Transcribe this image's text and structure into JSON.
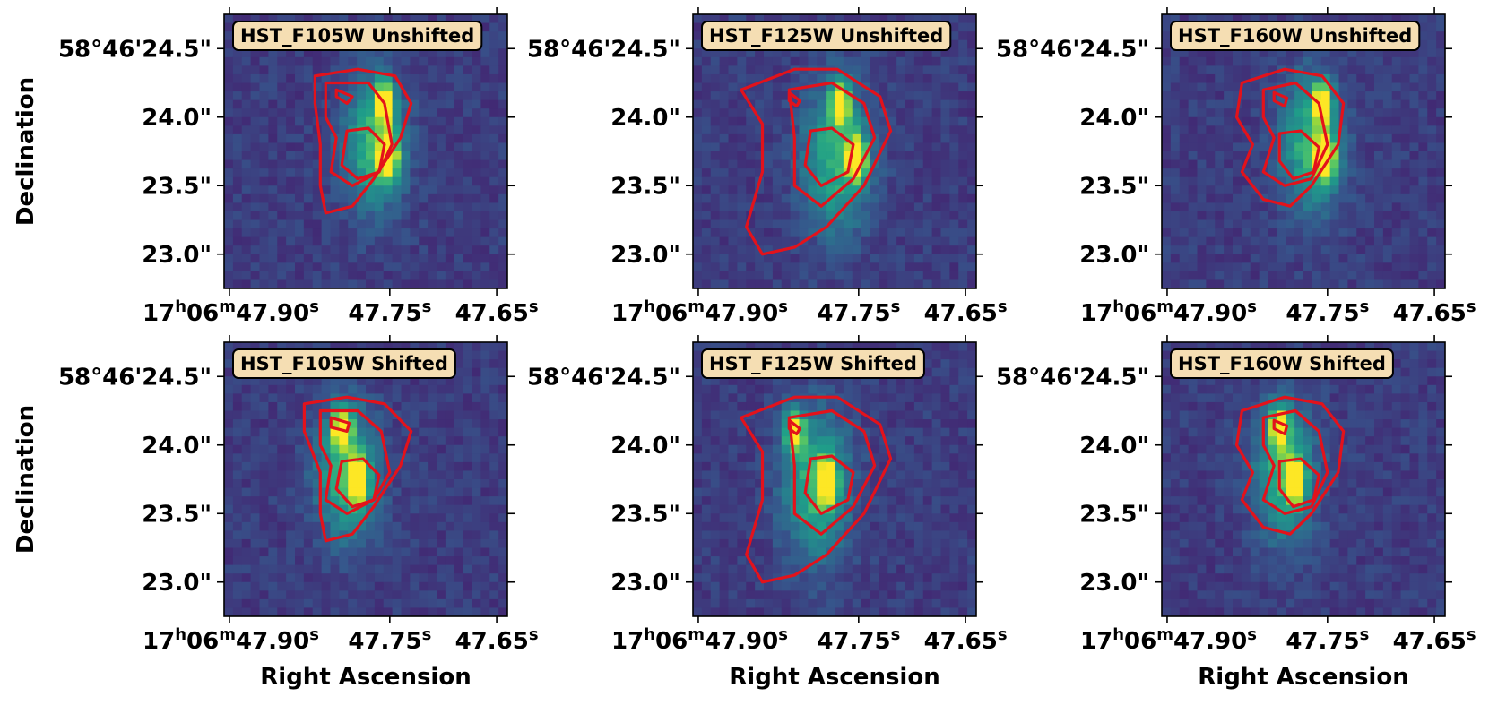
{
  "figure": {
    "xlabel": "Right Ascension",
    "ylabel": "Declination",
    "colors": {
      "contour": "#e3121b",
      "badge_fill": "#f5deb3",
      "badge_stroke": "#000000",
      "background_low": "#3b2f6b",
      "background_mid": "#2f5f8e",
      "peak": "#d9e33b"
    }
  },
  "chart_data": [
    {
      "type": "heatmap",
      "title": "HST_F105W Unshifted",
      "ra_ticks": [
        {
          "value": 47.9,
          "label_h": "17",
          "label_m": "06",
          "label_s": "47.90"
        },
        {
          "value": 47.75,
          "label_s": "47.75"
        },
        {
          "value": 47.65,
          "label_s": "47.65"
        }
      ],
      "dec_ticks": [
        {
          "value": 24.5,
          "label": "58°46'24.5\""
        },
        {
          "value": 24.0,
          "label": "24.0\""
        },
        {
          "value": 23.5,
          "label": "23.5\""
        },
        {
          "value": 23.0,
          "label": "23.0\""
        }
      ],
      "xlim": [
        47.905,
        47.64
      ],
      "ylim": [
        22.75,
        24.75
      ],
      "sources": [
        {
          "ra": 47.755,
          "dec": 24.1,
          "amp": 0.95,
          "sig": 0.006
        },
        {
          "ra": 47.752,
          "dec": 23.7,
          "amp": 1.0,
          "sig": 0.006
        },
        {
          "ra": 47.765,
          "dec": 23.8,
          "amp": 0.5,
          "sig": 0.02
        }
      ],
      "contours": [
        [
          [
            47.82,
            24.3
          ],
          [
            47.78,
            24.35
          ],
          [
            47.745,
            24.3
          ],
          [
            47.73,
            24.1
          ],
          [
            47.74,
            23.85
          ],
          [
            47.765,
            23.55
          ],
          [
            47.785,
            23.35
          ],
          [
            47.81,
            23.3
          ],
          [
            47.815,
            23.5
          ],
          [
            47.815,
            23.8
          ],
          [
            47.82,
            24.1
          ]
        ],
        [
          [
            47.81,
            24.25
          ],
          [
            47.77,
            24.25
          ],
          [
            47.755,
            24.1
          ],
          [
            47.748,
            23.8
          ],
          [
            47.76,
            23.6
          ],
          [
            47.785,
            23.5
          ],
          [
            47.805,
            23.6
          ],
          [
            47.8,
            23.85
          ],
          [
            47.81,
            24.0
          ]
        ],
        [
          [
            47.79,
            23.9
          ],
          [
            47.77,
            23.92
          ],
          [
            47.755,
            23.8
          ],
          [
            47.76,
            23.6
          ],
          [
            47.78,
            23.55
          ],
          [
            47.795,
            23.65
          ]
        ],
        [
          [
            47.8,
            24.2
          ],
          [
            47.785,
            24.15
          ],
          [
            47.79,
            24.1
          ],
          [
            47.8,
            24.15
          ]
        ]
      ]
    },
    {
      "type": "heatmap",
      "title": "HST_F125W Unshifted",
      "ra_ticks": [
        {
          "value": 47.9,
          "label_h": "17",
          "label_m": "06",
          "label_s": "47.90"
        },
        {
          "value": 47.75,
          "label_s": "47.75"
        },
        {
          "value": 47.65,
          "label_s": "47.65"
        }
      ],
      "dec_ticks": [
        {
          "value": 24.5,
          "label": "58°46'24.5\""
        },
        {
          "value": 24.0,
          "label": "24.0\""
        },
        {
          "value": 23.5,
          "label": "23.5\""
        },
        {
          "value": 23.0,
          "label": "23.0\""
        }
      ],
      "xlim": [
        47.905,
        47.64
      ],
      "ylim": [
        22.75,
        24.75
      ],
      "sources": [
        {
          "ra": 47.768,
          "dec": 24.1,
          "amp": 0.85,
          "sig": 0.006
        },
        {
          "ra": 47.752,
          "dec": 23.7,
          "amp": 1.0,
          "sig": 0.006
        },
        {
          "ra": 47.77,
          "dec": 23.7,
          "amp": 0.5,
          "sig": 0.022
        }
      ],
      "contours": [
        [
          [
            47.86,
            24.2
          ],
          [
            47.81,
            24.35
          ],
          [
            47.77,
            24.35
          ],
          [
            47.73,
            24.15
          ],
          [
            47.72,
            23.9
          ],
          [
            47.745,
            23.5
          ],
          [
            47.78,
            23.2
          ],
          [
            47.81,
            23.05
          ],
          [
            47.84,
            23.0
          ],
          [
            47.855,
            23.2
          ],
          [
            47.84,
            23.6
          ],
          [
            47.84,
            23.95
          ]
        ],
        [
          [
            47.815,
            24.2
          ],
          [
            47.775,
            24.25
          ],
          [
            47.745,
            24.1
          ],
          [
            47.735,
            23.85
          ],
          [
            47.755,
            23.55
          ],
          [
            47.785,
            23.35
          ],
          [
            47.81,
            23.5
          ],
          [
            47.81,
            23.85
          ]
        ],
        [
          [
            47.795,
            23.9
          ],
          [
            47.775,
            23.92
          ],
          [
            47.755,
            23.8
          ],
          [
            47.76,
            23.6
          ],
          [
            47.785,
            23.5
          ],
          [
            47.8,
            23.65
          ]
        ],
        [
          [
            47.815,
            24.18
          ],
          [
            47.805,
            24.12
          ],
          [
            47.808,
            24.08
          ],
          [
            47.815,
            24.12
          ]
        ]
      ]
    },
    {
      "type": "heatmap",
      "title": "HST_F160W Unshifted",
      "ra_ticks": [
        {
          "value": 47.9,
          "label_h": "17",
          "label_m": "06",
          "label_s": "47.90"
        },
        {
          "value": 47.75,
          "label_s": "47.75"
        },
        {
          "value": 47.65,
          "label_s": "47.65"
        }
      ],
      "dec_ticks": [
        {
          "value": 24.5,
          "label": "58°46'24.5\""
        },
        {
          "value": 24.0,
          "label": "24.0\""
        },
        {
          "value": 23.5,
          "label": "23.5\""
        },
        {
          "value": 23.0,
          "label": "23.0\""
        }
      ],
      "xlim": [
        47.905,
        47.64
      ],
      "ylim": [
        22.75,
        24.75
      ],
      "sources": [
        {
          "ra": 47.755,
          "dec": 24.1,
          "amp": 0.85,
          "sig": 0.006
        },
        {
          "ra": 47.752,
          "dec": 23.7,
          "amp": 1.0,
          "sig": 0.006
        },
        {
          "ra": 47.765,
          "dec": 23.8,
          "amp": 0.5,
          "sig": 0.02
        }
      ],
      "contours": [
        [
          [
            47.83,
            24.25
          ],
          [
            47.79,
            24.35
          ],
          [
            47.755,
            24.3
          ],
          [
            47.735,
            24.1
          ],
          [
            47.74,
            23.8
          ],
          [
            47.765,
            23.5
          ],
          [
            47.785,
            23.35
          ],
          [
            47.81,
            23.4
          ],
          [
            47.83,
            23.6
          ],
          [
            47.82,
            23.8
          ],
          [
            47.835,
            24.0
          ]
        ],
        [
          [
            47.81,
            24.2
          ],
          [
            47.78,
            24.25
          ],
          [
            47.758,
            24.1
          ],
          [
            47.75,
            23.8
          ],
          [
            47.765,
            23.55
          ],
          [
            47.79,
            23.5
          ],
          [
            47.81,
            23.6
          ],
          [
            47.8,
            23.85
          ],
          [
            47.81,
            24.0
          ]
        ],
        [
          [
            47.795,
            23.88
          ],
          [
            47.775,
            23.9
          ],
          [
            47.758,
            23.78
          ],
          [
            47.763,
            23.6
          ],
          [
            47.782,
            23.55
          ],
          [
            47.795,
            23.68
          ]
        ],
        [
          [
            47.8,
            24.18
          ],
          [
            47.788,
            24.14
          ],
          [
            47.79,
            24.08
          ],
          [
            47.8,
            24.12
          ]
        ]
      ]
    },
    {
      "type": "heatmap",
      "title": "HST_F105W Shifted",
      "ra_ticks": [
        {
          "value": 47.9,
          "label_h": "17",
          "label_m": "06",
          "label_s": "47.90"
        },
        {
          "value": 47.75,
          "label_s": "47.75"
        },
        {
          "value": 47.65,
          "label_s": "47.65"
        }
      ],
      "dec_ticks": [
        {
          "value": 24.5,
          "label": "58°46'24.5\""
        },
        {
          "value": 24.0,
          "label": "24.0\""
        },
        {
          "value": 23.5,
          "label": "23.5\""
        },
        {
          "value": 23.0,
          "label": "23.0\""
        }
      ],
      "xlim": [
        47.905,
        47.64
      ],
      "ylim": [
        22.75,
        24.75
      ],
      "sources": [
        {
          "ra": 47.795,
          "dec": 24.12,
          "amp": 0.9,
          "sig": 0.006
        },
        {
          "ra": 47.78,
          "dec": 23.73,
          "amp": 1.0,
          "sig": 0.006
        },
        {
          "ra": 47.79,
          "dec": 23.8,
          "amp": 0.5,
          "sig": 0.02
        }
      ],
      "contours": [
        [
          [
            47.83,
            24.3
          ],
          [
            47.79,
            24.35
          ],
          [
            47.755,
            24.3
          ],
          [
            47.73,
            24.1
          ],
          [
            47.74,
            23.85
          ],
          [
            47.765,
            23.55
          ],
          [
            47.785,
            23.35
          ],
          [
            47.81,
            23.3
          ],
          [
            47.815,
            23.5
          ],
          [
            47.815,
            23.8
          ],
          [
            47.83,
            24.1
          ]
        ],
        [
          [
            47.815,
            24.25
          ],
          [
            47.78,
            24.25
          ],
          [
            47.758,
            24.1
          ],
          [
            47.75,
            23.8
          ],
          [
            47.765,
            23.6
          ],
          [
            47.79,
            23.5
          ],
          [
            47.81,
            23.6
          ],
          [
            47.805,
            23.85
          ],
          [
            47.815,
            24.0
          ]
        ],
        [
          [
            47.795,
            23.88
          ],
          [
            47.775,
            23.9
          ],
          [
            47.76,
            23.78
          ],
          [
            47.765,
            23.6
          ],
          [
            47.785,
            23.55
          ],
          [
            47.8,
            23.68
          ]
        ],
        [
          [
            47.805,
            24.2
          ],
          [
            47.788,
            24.16
          ],
          [
            47.79,
            24.1
          ],
          [
            47.805,
            24.13
          ]
        ]
      ]
    },
    {
      "type": "heatmap",
      "title": "HST_F125W Shifted",
      "ra_ticks": [
        {
          "value": 47.9,
          "label_h": "17",
          "label_m": "06",
          "label_s": "47.90"
        },
        {
          "value": 47.75,
          "label_s": "47.75"
        },
        {
          "value": 47.65,
          "label_s": "47.65"
        }
      ],
      "dec_ticks": [
        {
          "value": 24.5,
          "label": "58°46'24.5\""
        },
        {
          "value": 24.0,
          "label": "24.0\""
        },
        {
          "value": 23.5,
          "label": "23.5\""
        },
        {
          "value": 23.0,
          "label": "23.0\""
        }
      ],
      "xlim": [
        47.905,
        47.64
      ],
      "ylim": [
        22.75,
        24.75
      ],
      "sources": [
        {
          "ra": 47.81,
          "dec": 24.1,
          "amp": 0.8,
          "sig": 0.006
        },
        {
          "ra": 47.78,
          "dec": 23.73,
          "amp": 1.0,
          "sig": 0.006
        },
        {
          "ra": 47.79,
          "dec": 23.7,
          "amp": 0.5,
          "sig": 0.022
        }
      ],
      "contours": [
        [
          [
            47.86,
            24.2
          ],
          [
            47.81,
            24.35
          ],
          [
            47.77,
            24.35
          ],
          [
            47.73,
            24.15
          ],
          [
            47.72,
            23.9
          ],
          [
            47.745,
            23.5
          ],
          [
            47.78,
            23.2
          ],
          [
            47.81,
            23.05
          ],
          [
            47.84,
            23.0
          ],
          [
            47.855,
            23.2
          ],
          [
            47.84,
            23.6
          ],
          [
            47.84,
            23.95
          ]
        ],
        [
          [
            47.815,
            24.2
          ],
          [
            47.775,
            24.25
          ],
          [
            47.745,
            24.1
          ],
          [
            47.735,
            23.85
          ],
          [
            47.755,
            23.55
          ],
          [
            47.785,
            23.35
          ],
          [
            47.81,
            23.5
          ],
          [
            47.81,
            23.85
          ]
        ],
        [
          [
            47.795,
            23.9
          ],
          [
            47.775,
            23.92
          ],
          [
            47.755,
            23.8
          ],
          [
            47.76,
            23.6
          ],
          [
            47.785,
            23.5
          ],
          [
            47.8,
            23.65
          ]
        ],
        [
          [
            47.815,
            24.18
          ],
          [
            47.805,
            24.12
          ],
          [
            47.808,
            24.08
          ],
          [
            47.815,
            24.12
          ]
        ]
      ]
    },
    {
      "type": "heatmap",
      "title": "HST_F160W Shifted",
      "ra_ticks": [
        {
          "value": 47.9,
          "label_h": "17",
          "label_m": "06",
          "label_s": "47.90"
        },
        {
          "value": 47.75,
          "label_s": "47.75"
        },
        {
          "value": 47.65,
          "label_s": "47.65"
        }
      ],
      "dec_ticks": [
        {
          "value": 24.5,
          "label": "58°46'24.5\""
        },
        {
          "value": 24.0,
          "label": "24.0\""
        },
        {
          "value": 23.5,
          "label": "23.5\""
        },
        {
          "value": 23.0,
          "label": "23.0\""
        }
      ],
      "xlim": [
        47.905,
        47.64
      ],
      "ylim": [
        22.75,
        24.75
      ],
      "sources": [
        {
          "ra": 47.795,
          "dec": 24.12,
          "amp": 0.85,
          "sig": 0.006
        },
        {
          "ra": 47.78,
          "dec": 23.73,
          "amp": 1.0,
          "sig": 0.006
        },
        {
          "ra": 47.79,
          "dec": 23.8,
          "amp": 0.5,
          "sig": 0.02
        }
      ],
      "contours": [
        [
          [
            47.83,
            24.25
          ],
          [
            47.79,
            24.35
          ],
          [
            47.755,
            24.3
          ],
          [
            47.735,
            24.1
          ],
          [
            47.74,
            23.8
          ],
          [
            47.765,
            23.5
          ],
          [
            47.785,
            23.35
          ],
          [
            47.81,
            23.4
          ],
          [
            47.83,
            23.6
          ],
          [
            47.82,
            23.8
          ],
          [
            47.835,
            24.0
          ]
        ],
        [
          [
            47.81,
            24.2
          ],
          [
            47.78,
            24.25
          ],
          [
            47.758,
            24.1
          ],
          [
            47.75,
            23.8
          ],
          [
            47.765,
            23.55
          ],
          [
            47.79,
            23.5
          ],
          [
            47.81,
            23.6
          ],
          [
            47.8,
            23.85
          ],
          [
            47.81,
            24.0
          ]
        ],
        [
          [
            47.795,
            23.88
          ],
          [
            47.775,
            23.9
          ],
          [
            47.758,
            23.78
          ],
          [
            47.763,
            23.6
          ],
          [
            47.782,
            23.55
          ],
          [
            47.795,
            23.68
          ]
        ],
        [
          [
            47.8,
            24.18
          ],
          [
            47.788,
            24.14
          ],
          [
            47.79,
            24.08
          ],
          [
            47.8,
            24.12
          ]
        ]
      ]
    }
  ]
}
